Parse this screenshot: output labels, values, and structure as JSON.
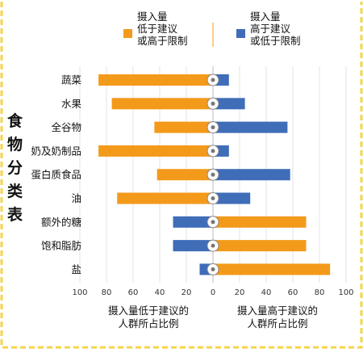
{
  "legend": {
    "low": {
      "lines": [
        "摄入量",
        "低于建议",
        "或高于限制"
      ],
      "color": "#F39A1B"
    },
    "high": {
      "lines": [
        "摄入量",
        "高于建议",
        "或低于限制"
      ],
      "color": "#3F6DB8"
    }
  },
  "side_title": [
    "食",
    "物",
    "分",
    "类",
    "表"
  ],
  "axis": {
    "left_label": [
      "摄入量低于建议的",
      "人群所占比例"
    ],
    "right_label": [
      "摄入量高于建议的",
      "人群所占比例"
    ]
  },
  "colors": {
    "orange": "#F39A1B",
    "blue": "#3F6DB8",
    "frame": "#F6D54A",
    "grid": "#E3E3E3"
  },
  "chart_data": {
    "type": "bar",
    "orientation": "diverging-horizontal",
    "categories": [
      "蔬菜",
      "水果",
      "全谷物",
      "奶及奶制品",
      "蛋白质食品",
      "油",
      "额外的糖",
      "饱和脂肪",
      "盐"
    ],
    "category_icons": [
      "vegetable-icon",
      "fruit-icon",
      "grain-icon",
      "milk-icon",
      "protein-icon",
      "oil-icon",
      "sugar-icon",
      "fat-icon",
      "salt-icon"
    ],
    "xlim": [
      -100,
      100
    ],
    "x_ticks": [
      100,
      80,
      60,
      40,
      20,
      0,
      20,
      40,
      60,
      80,
      100
    ],
    "series": [
      {
        "key": "low",
        "color": "#F39A1B",
        "values": [
          -86,
          -76,
          -44,
          -86,
          -42,
          -72,
          -30,
          -30,
          -10
        ],
        "note": "negative = left of zero"
      },
      {
        "key": "high",
        "color": "#3F6DB8",
        "values": [
          12,
          24,
          56,
          12,
          58,
          28,
          70,
          70,
          88
        ],
        "note": "positive = right of zero"
      }
    ],
    "bar_colors_by_side": [
      [
        "#F39A1B",
        "#3F6DB8"
      ],
      [
        "#F39A1B",
        "#3F6DB8"
      ],
      [
        "#F39A1B",
        "#3F6DB8"
      ],
      [
        "#F39A1B",
        "#3F6DB8"
      ],
      [
        "#F39A1B",
        "#3F6DB8"
      ],
      [
        "#F39A1B",
        "#3F6DB8"
      ],
      [
        "#3F6DB8",
        "#F39A1B"
      ],
      [
        "#3F6DB8",
        "#F39A1B"
      ],
      [
        "#3F6DB8",
        "#F39A1B"
      ]
    ]
  }
}
